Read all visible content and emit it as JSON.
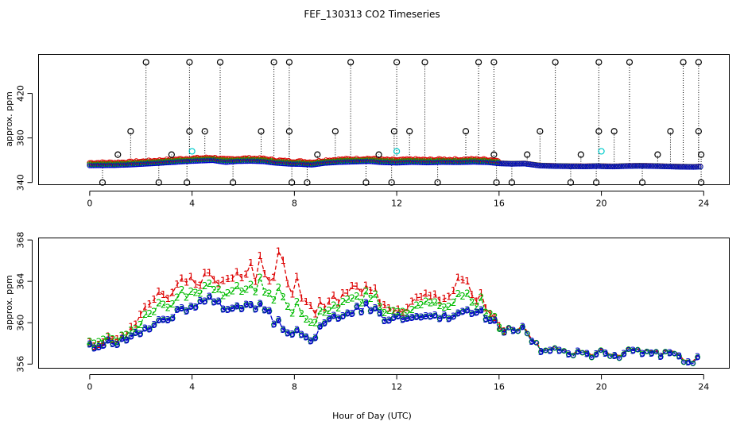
{
  "title": "FEF_130313  CO2 Timeseries",
  "xlabel": "Hour of Day (UTC)",
  "colors": {
    "series1": "#dd0000",
    "series2": "#00bb00",
    "series3": "#0000cc",
    "outlier": "#000000",
    "flag": "#00cccc"
  },
  "chart_data": [
    {
      "type": "scatter",
      "ylabel": "approx. ppm",
      "xlim": [
        -2,
        25
      ],
      "ylim": [
        338,
        455
      ],
      "xticks": [
        0,
        4,
        8,
        12,
        16,
        20,
        24
      ],
      "yticks": [
        340,
        380,
        420
      ],
      "xtick_labels": [
        "0",
        "4",
        "8",
        "12",
        "16",
        "20",
        "24"
      ],
      "ytick_labels": [
        "340",
        "380",
        "420"
      ],
      "outliers_high": [
        2.2,
        3.9,
        5.1,
        7.2,
        7.8,
        10.2,
        12.0,
        13.1,
        15.2,
        15.8,
        18.2,
        19.9,
        21.1,
        23.2,
        23.8
      ],
      "outliers_low": [
        0.5,
        2.7,
        3.8,
        5.6,
        7.9,
        8.5,
        10.8,
        11.8,
        13.6,
        15.9,
        16.5,
        18.8,
        19.8,
        21.6,
        23.9
      ],
      "outliers_mid": [
        1.6,
        3.9,
        4.5,
        6.7,
        7.8,
        9.6,
        11.9,
        12.5,
        14.7,
        17.6,
        19.9,
        20.5,
        22.7,
        23.8
      ],
      "outliers_small": [
        1.1,
        3.2,
        8.9,
        11.3,
        15.8,
        17.1,
        19.2,
        22.2,
        23.9
      ],
      "flagged_points": [
        4.0,
        12.0,
        20.0
      ]
    },
    {
      "type": "line",
      "ylabel": "approx. ppm",
      "xlim": [
        -2,
        25
      ],
      "ylim": [
        355.6,
        368.2
      ],
      "xticks": [
        0,
        4,
        8,
        12,
        16,
        20,
        24
      ],
      "yticks": [
        356,
        360,
        364,
        368
      ],
      "xtick_labels": [
        "0",
        "4",
        "8",
        "12",
        "16",
        "20",
        "24"
      ],
      "ytick_labels": [
        "356",
        "360",
        "364",
        "368"
      ],
      "series": [
        {
          "name": "1",
          "marker": "1"
        },
        {
          "name": "2",
          "marker": "2"
        },
        {
          "name": "3",
          "marker": "3"
        }
      ],
      "baseline_points": [
        [
          0,
          357.8
        ],
        [
          1.0,
          358.0
        ],
        [
          1.5,
          358.4
        ],
        [
          2.0,
          359.0
        ],
        [
          2.6,
          359.8
        ],
        [
          3.2,
          360.6
        ],
        [
          3.7,
          361.4
        ],
        [
          4.3,
          362.0
        ],
        [
          4.8,
          362.5
        ],
        [
          5.0,
          361.8
        ],
        [
          5.3,
          360.8
        ],
        [
          5.8,
          361.6
        ],
        [
          6.3,
          361.8
        ],
        [
          6.8,
          361.4
        ],
        [
          7.2,
          360.2
        ],
        [
          7.8,
          359.2
        ],
        [
          8.2,
          359.0
        ],
        [
          8.7,
          358.4
        ],
        [
          9.2,
          360.0
        ],
        [
          9.8,
          360.8
        ],
        [
          10.4,
          361.2
        ],
        [
          10.9,
          361.6
        ],
        [
          11.4,
          360.6
        ],
        [
          12.0,
          360.2
        ],
        [
          12.6,
          360.8
        ],
        [
          13.2,
          360.4
        ],
        [
          13.8,
          360.8
        ],
        [
          14.4,
          360.6
        ],
        [
          15.0,
          361.0
        ],
        [
          15.6,
          360.6
        ],
        [
          16.0,
          359.6
        ],
        [
          16.5,
          359.2
        ],
        [
          17.0,
          359.4
        ],
        [
          17.6,
          357.6
        ],
        [
          18.2,
          357.2
        ],
        [
          18.8,
          357.0
        ],
        [
          19.4,
          356.9
        ],
        [
          19.9,
          357.2
        ],
        [
          20.0,
          357.0
        ],
        [
          20.5,
          356.8
        ],
        [
          21.0,
          357.2
        ],
        [
          21.5,
          357.4
        ],
        [
          22.0,
          357.2
        ],
        [
          22.5,
          356.9
        ],
        [
          23.0,
          356.6
        ],
        [
          23.6,
          356.4
        ],
        [
          23.8,
          356.6
        ]
      ],
      "series1_offset_profile": [
        [
          0,
          0.2
        ],
        [
          1.5,
          0.6
        ],
        [
          2.2,
          2.2
        ],
        [
          3.2,
          3.0
        ],
        [
          4.8,
          2.2
        ],
        [
          5.6,
          3.4
        ],
        [
          6.4,
          4.0
        ],
        [
          7.0,
          4.4
        ],
        [
          7.6,
          7.6
        ],
        [
          8.4,
          3.6
        ],
        [
          9.2,
          2.0
        ],
        [
          10.4,
          2.8
        ],
        [
          11.2,
          1.8
        ],
        [
          12.0,
          0.6
        ],
        [
          12.6,
          1.6
        ],
        [
          13.0,
          2.6
        ],
        [
          13.6,
          2.2
        ],
        [
          14.4,
          3.6
        ],
        [
          15.0,
          2.0
        ],
        [
          15.8,
          0.4
        ],
        [
          16.2,
          0.2
        ],
        [
          24,
          0.2
        ]
      ]
    }
  ]
}
